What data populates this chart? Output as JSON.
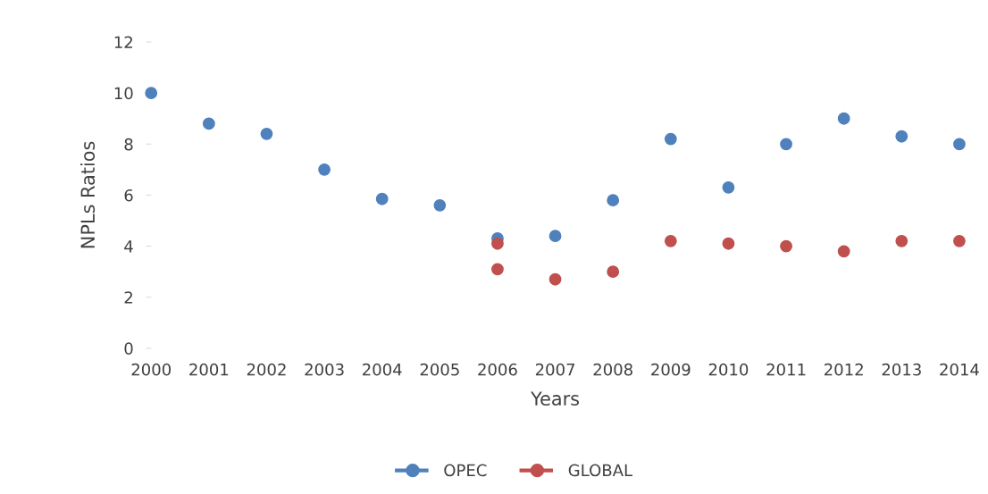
{
  "chart_data": {
    "type": "scatter",
    "xlabel": "Years",
    "ylabel": "NPLs Ratios",
    "xlim": [
      2000,
      2014
    ],
    "xticks": [
      2000,
      2001,
      2002,
      2003,
      2004,
      2005,
      2006,
      2007,
      2008,
      2009,
      2010,
      2011,
      2012,
      2013,
      2014
    ],
    "ylim": [
      0,
      12
    ],
    "yticks": [
      0,
      2,
      4,
      6,
      8,
      10,
      12
    ],
    "grid": false,
    "legend": "bottom",
    "marker": "circle",
    "series": [
      {
        "name": "OPEC",
        "color": "#4f81bd",
        "x": [
          2000,
          2001,
          2002,
          2003,
          2004,
          2005,
          2006,
          2007,
          2008,
          2009,
          2010,
          2011,
          2012,
          2013,
          2014
        ],
        "values": [
          10.0,
          8.8,
          8.4,
          7.0,
          5.85,
          5.6,
          4.3,
          4.4,
          5.8,
          8.2,
          6.3,
          8.0,
          9.0,
          8.3,
          8.0
        ]
      },
      {
        "name": "GLOBAL",
        "color": "#c0504d",
        "x": [
          2006,
          2006,
          2007,
          2008,
          2009,
          2010,
          2011,
          2012,
          2013,
          2014
        ],
        "values": [
          3.1,
          4.1,
          2.7,
          3.0,
          4.2,
          4.1,
          4.0,
          3.8,
          4.2,
          4.2
        ]
      }
    ]
  }
}
